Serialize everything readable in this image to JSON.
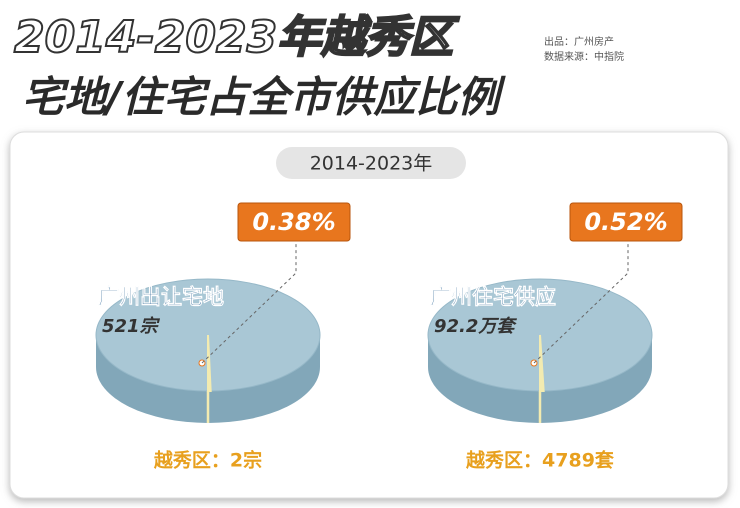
{
  "header": {
    "title_line1": "2014-2023年越秀区",
    "title_line2": "宅地/住宅占全市供应比例",
    "source_line1": "出品：广州房产",
    "source_line2": "数据来源：中指院",
    "period": "2014-2023年"
  },
  "chart_data": [
    {
      "type": "pie",
      "title": "广州出让宅地",
      "total": "521宗",
      "categories": [
        "越秀区：2宗"
      ],
      "values": [
        0.38
      ],
      "value_labels": [
        "0.38%"
      ],
      "color": "#f3ebb0",
      "rest_color": "#a9c7d5"
    },
    {
      "type": "pie",
      "title": "广州住宅供应",
      "total": "92.2万套",
      "categories": [
        "越秀区：4789套"
      ],
      "values": [
        0.52
      ],
      "value_labels": [
        "0.52%"
      ],
      "color": "#f3ebb0",
      "rest_color": "#a9c7d5"
    }
  ]
}
